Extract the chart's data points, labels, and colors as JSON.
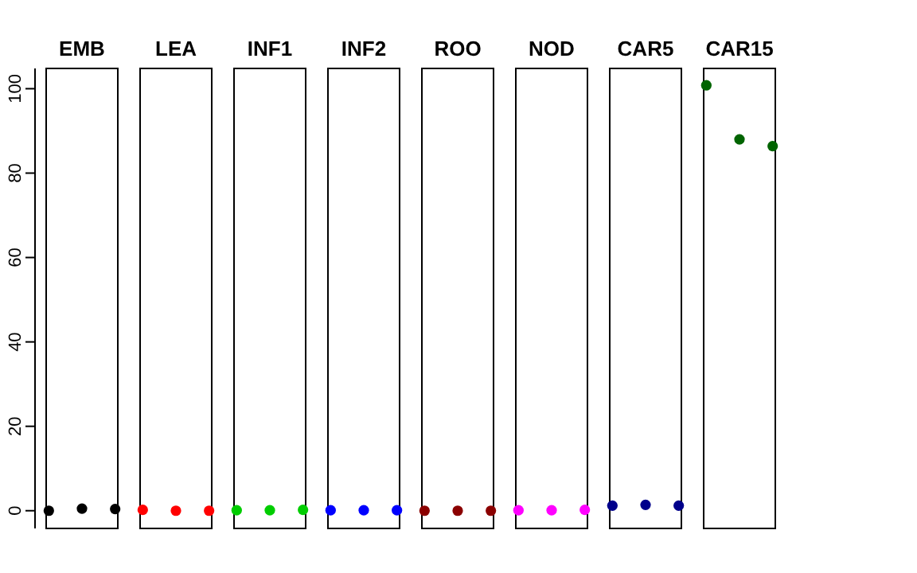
{
  "chart_data": {
    "type": "scatter",
    "categories": [
      "EMB",
      "LEA",
      "INF1",
      "INF2",
      "ROO",
      "NOD",
      "CAR5",
      "CAR15"
    ],
    "ylim": [
      -4.2,
      104.8
    ],
    "yticks": [
      0,
      20,
      40,
      60,
      80,
      100
    ],
    "marker": "circle",
    "series": [
      {
        "colors": [
          "#000000",
          "#ff0000",
          "#00cd00",
          "#0000ff",
          "#8b0000",
          "#ff00ff",
          "#00008b",
          "#006400"
        ],
        "values": [
          0,
          0.2,
          0.1,
          0.1,
          0,
          0.1,
          1.2,
          100.8
        ]
      },
      {
        "colors": [
          "#000000",
          "#ff0000",
          "#00cd00",
          "#0000ff",
          "#8b0000",
          "#ff00ff",
          "#00008b",
          "#006400"
        ],
        "values": [
          0.5,
          0,
          0.1,
          0.1,
          0,
          0.1,
          1.4,
          88
        ]
      },
      {
        "colors": [
          "#000000",
          "#ff0000",
          "#00cd00",
          "#0000ff",
          "#8b0000",
          "#ff00ff",
          "#00008b",
          "#006400"
        ],
        "values": [
          0.4,
          0,
          0.2,
          0.1,
          0,
          0.2,
          1.2,
          86.4
        ]
      }
    ]
  }
}
